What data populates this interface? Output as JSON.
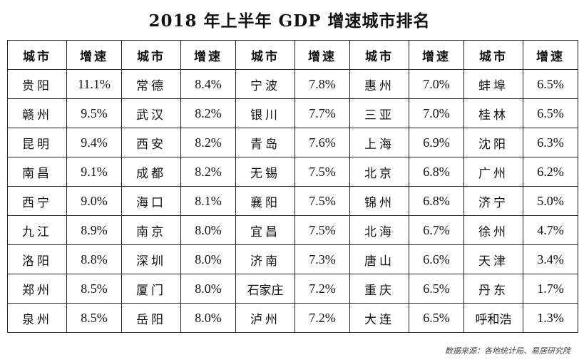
{
  "title": "2018 年上半年 GDP 增速城市排名",
  "header": [
    "城市",
    "增速",
    "城市",
    "增速",
    "城市",
    "增速",
    "城市",
    "增速",
    "城市",
    "增速"
  ],
  "rows": [
    [
      "贵阳",
      "11.1%",
      "常德",
      "8.4%",
      "宁波",
      "7.8%",
      "惠州",
      "7.0%",
      "蚌埠",
      "6.5%"
    ],
    [
      "赣州",
      "9.5%",
      "武汉",
      "8.2%",
      "银川",
      "7.7%",
      "三亚",
      "7.0%",
      "桂林",
      "6.5%"
    ],
    [
      "昆明",
      "9.4%",
      "西安",
      "8.2%",
      "青岛",
      "7.6%",
      "上海",
      "6.9%",
      "沈阳",
      "6.3%"
    ],
    [
      "南昌",
      "9.1%",
      "成都",
      "8.2%",
      "无锡",
      "7.5%",
      "北京",
      "6.8%",
      "广州",
      "6.2%"
    ],
    [
      "西宁",
      "9.0%",
      "海口",
      "8.1%",
      "襄阳",
      "7.5%",
      "锦州",
      "6.8%",
      "济宁",
      "5.0%"
    ],
    [
      "九江",
      "8.9%",
      "南京",
      "8.0%",
      "宜昌",
      "7.5%",
      "北海",
      "6.7%",
      "徐州",
      "4.7%"
    ],
    [
      "洛阳",
      "8.8%",
      "深圳",
      "8.0%",
      "济南",
      "7.3%",
      "唐山",
      "6.6%",
      "天津",
      "3.4%"
    ],
    [
      "郑州",
      "8.5%",
      "厦门",
      "8.0%",
      "石家庄",
      "7.2%",
      "重庆",
      "6.5%",
      "丹东",
      "1.7%"
    ],
    [
      "泉州",
      "8.5%",
      "岳阳",
      "8.0%",
      "泸州",
      "7.2%",
      "大连",
      "6.5%",
      "呼和浩",
      "1.3%"
    ]
  ],
  "source": "数据来源：各地统计局、易居研究院"
}
